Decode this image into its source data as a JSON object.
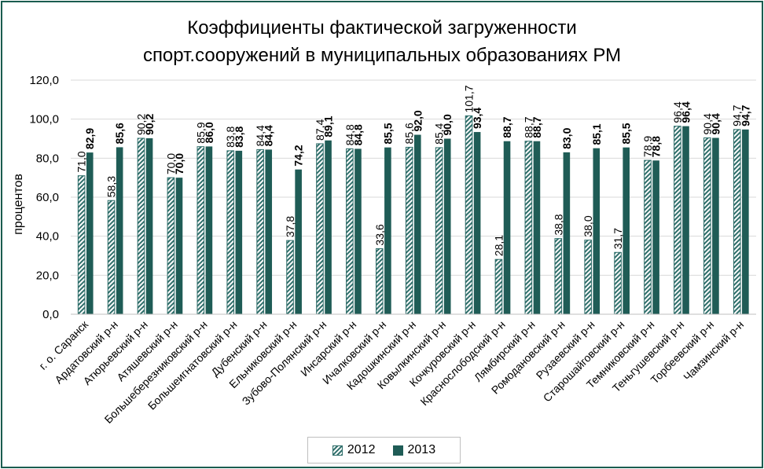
{
  "title_line1": "Коэффициенты фактической загруженности",
  "title_line2": "спорт.сооружений  в муниципальных образованиях РМ",
  "chart_data": {
    "type": "bar",
    "title": "Коэффициенты фактической загруженности спорт.сооружений  в муниципальных образованиях РМ",
    "ylabel": "процентов",
    "xlabel": "",
    "ylim": [
      0,
      120
    ],
    "yticks": [
      "0,0",
      "20,0",
      "40,0",
      "60,0",
      "80,0",
      "100,0",
      "120,0"
    ],
    "ytick_values": [
      0,
      20,
      40,
      60,
      80,
      100,
      120
    ],
    "grid": true,
    "legend": "bottom",
    "categories": [
      "г. о. Саранск",
      "Ардатовский р-н",
      "Атюрьевский р-н",
      "Атяшевский р-н",
      "Большеберезниковский р-н",
      "Большеигнатовский р-н",
      "Дубенский р-н",
      "Ельниковский р-н",
      "Зубово-Полянский р-н",
      "Инсарский р-н",
      "Ичалковский р-н",
      "Кадошкинский р-н",
      "Ковылкинский р-н",
      "Кочкуровский р-н",
      "Краснослободский р-н",
      "Лямбирский р-н",
      "Ромодановский р-н",
      "Рузаевский р-н",
      "Старошайговский р-н",
      "Темниковский р-н",
      "Теньгушевский р-н",
      "Торбеевский р-н",
      "Чамзинский р-н"
    ],
    "series": [
      {
        "name": "2012",
        "values": [
          71.0,
          58.3,
          90.2,
          70.0,
          85.9,
          83.8,
          84.4,
          37.8,
          87.4,
          84.8,
          33.6,
          85.6,
          85.4,
          101.7,
          28.1,
          88.7,
          38.8,
          38.0,
          31.7,
          78.9,
          96.4,
          90.4,
          94.7
        ],
        "labels": [
          "71,0",
          "58,3",
          "90,2",
          "70,0",
          "85,9",
          "83,8",
          "84,4",
          "37,8",
          "87,4",
          "84,8",
          "33,6",
          "85,6",
          "85,4",
          "101,7",
          "28,1",
          "88,7",
          "38,8",
          "38,0",
          "31,7",
          "78,9",
          "96,4",
          "90,4",
          "94,7"
        ]
      },
      {
        "name": "2013",
        "values": [
          82.9,
          85.6,
          90.2,
          70.0,
          86.0,
          83.8,
          84.4,
          74.2,
          89.1,
          84.8,
          85.5,
          92.0,
          90.0,
          93.4,
          88.7,
          88.7,
          83.0,
          85.1,
          85.5,
          78.8,
          96.4,
          90.4,
          94.7
        ],
        "labels": [
          "82,9",
          "85,6",
          "90,2",
          "70,0",
          "86,0",
          "83,8",
          "84,4",
          "74,2",
          "89,1",
          "84,8",
          "85,5",
          "92,0",
          "90,0",
          "93,4",
          "88,7",
          "88,7",
          "83,0",
          "85,1",
          "85,5",
          "78,8",
          "96,4",
          "90,4",
          "94,7"
        ]
      }
    ],
    "colors": {
      "series2013": "#1f5c56",
      "hatch": "#2f6e6a",
      "frame": "#1a5c4f",
      "grid": "#d9d9d9"
    }
  }
}
